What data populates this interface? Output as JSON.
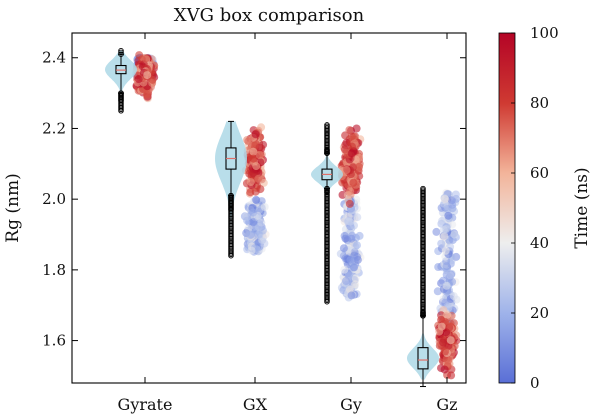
{
  "chart_data": {
    "type": "box-violin-strip",
    "title": "XVG box comparison",
    "xlabel": "",
    "ylabel": "Rg (nm)",
    "categories": [
      "Gyrate",
      "GX",
      "Gy",
      "Gz"
    ],
    "ylim": [
      1.48,
      2.47
    ],
    "yticks": [
      "1.6",
      "1.8",
      "2.0",
      "2.2",
      "2.4"
    ],
    "grid": false,
    "colorbar": {
      "label": "Time (ns)",
      "range": [
        0,
        100
      ],
      "ticks": [
        "0",
        "20",
        "40",
        "60",
        "80",
        "100"
      ],
      "colors": [
        "#5a6fd6",
        "#9fb3ea",
        "#eeeeee",
        "#f3b49a",
        "#cf3a32",
        "#b40426"
      ]
    },
    "violin_color": "#add8e6",
    "series": [
      {
        "category": "Gyrate",
        "box": {
          "min": 2.3,
          "q1": 2.355,
          "median": 2.365,
          "q3": 2.378,
          "max": 2.41
        },
        "outliers": [
          2.25,
          2.28,
          2.42
        ],
        "violin_range": [
          2.3,
          2.42
        ],
        "scatter_early": [
          2.34,
          2.4
        ],
        "scatter_late": [
          2.28,
          2.42
        ]
      },
      {
        "category": "GX",
        "box": {
          "min": 2.01,
          "q1": 2.085,
          "median": 2.115,
          "q3": 2.145,
          "max": 2.22
        },
        "outliers": [
          1.84,
          1.97
        ],
        "violin_range": [
          1.92,
          2.22
        ],
        "scatter_early": [
          1.85,
          2.0
        ],
        "scatter_late": [
          2.0,
          2.22
        ]
      },
      {
        "category": "Gy",
        "box": {
          "min": 2.03,
          "q1": 2.055,
          "median": 2.07,
          "q3": 2.085,
          "max": 2.13
        },
        "outliers": [
          1.71,
          2.02,
          2.14,
          2.21
        ],
        "violin_range": [
          2.03,
          2.13
        ],
        "scatter_early": [
          1.72,
          2.0
        ],
        "scatter_late": [
          1.98,
          2.21
        ]
      },
      {
        "category": "Gz",
        "box": {
          "min": 1.47,
          "q1": 1.52,
          "median": 1.545,
          "q3": 1.58,
          "max": 1.67
        },
        "outliers": [
          1.68,
          2.03
        ],
        "violin_range": [
          1.49,
          1.62
        ],
        "scatter_early": [
          1.65,
          2.02
        ],
        "scatter_late": [
          1.5,
          1.7
        ]
      }
    ]
  }
}
